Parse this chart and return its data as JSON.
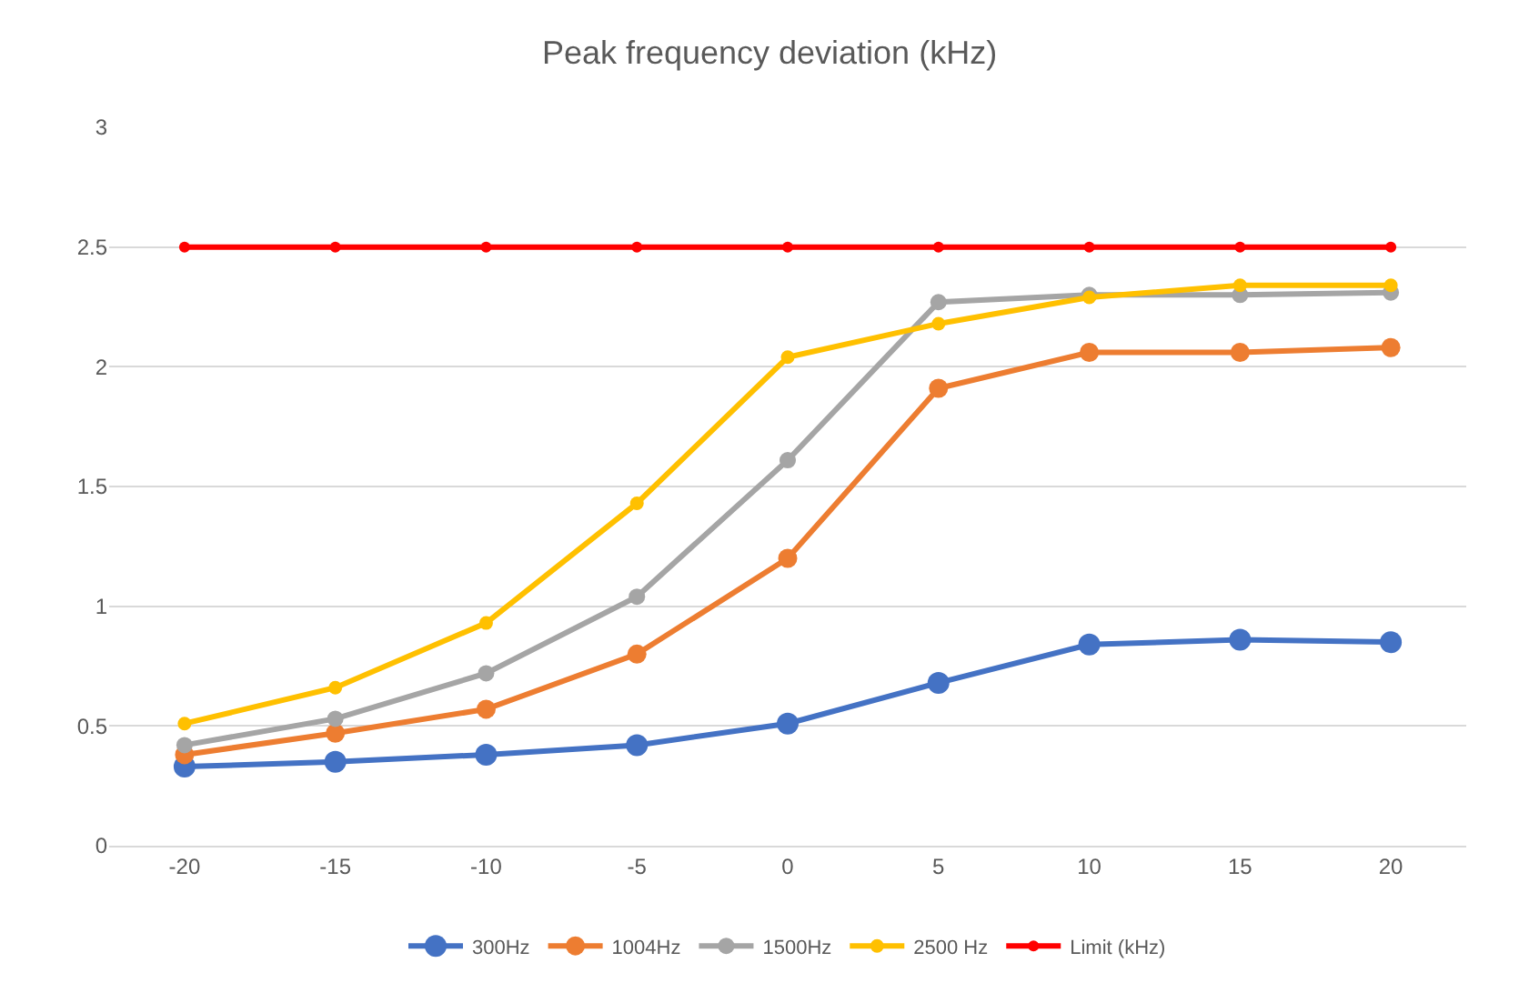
{
  "chart_data": {
    "type": "line",
    "title": "Peak frequency deviation (kHz)",
    "categories": [
      "-20",
      "-15",
      "-10",
      "-5",
      "0",
      "5",
      "10",
      "15",
      "20"
    ],
    "series": [
      {
        "name": "300Hz",
        "color": "#4472c4",
        "values": [
          0.33,
          0.35,
          0.38,
          0.42,
          0.51,
          0.68,
          0.84,
          0.86,
          0.85
        ]
      },
      {
        "name": "1004Hz",
        "color": "#ed7d31",
        "values": [
          0.38,
          0.47,
          0.57,
          0.8,
          1.2,
          1.91,
          2.06,
          2.06,
          2.08
        ]
      },
      {
        "name": "1500Hz",
        "color": "#a5a5a5",
        "values": [
          0.42,
          0.53,
          0.72,
          1.04,
          1.61,
          2.27,
          2.3,
          2.3,
          2.31
        ]
      },
      {
        "name": "2500 Hz",
        "color": "#ffc000",
        "values": [
          0.51,
          0.66,
          0.93,
          1.43,
          2.04,
          2.18,
          2.29,
          2.34,
          2.34
        ]
      },
      {
        "name": "Limit (kHz)",
        "color": "#ff0000",
        "values": [
          2.5,
          2.5,
          2.5,
          2.5,
          2.5,
          2.5,
          2.5,
          2.5,
          2.5
        ]
      }
    ],
    "ylim": [
      0,
      3
    ],
    "yticks": [
      0,
      0.5,
      1,
      1.5,
      2,
      2.5,
      3
    ],
    "grid": "y",
    "legend": "bottom",
    "marker": "circle"
  }
}
